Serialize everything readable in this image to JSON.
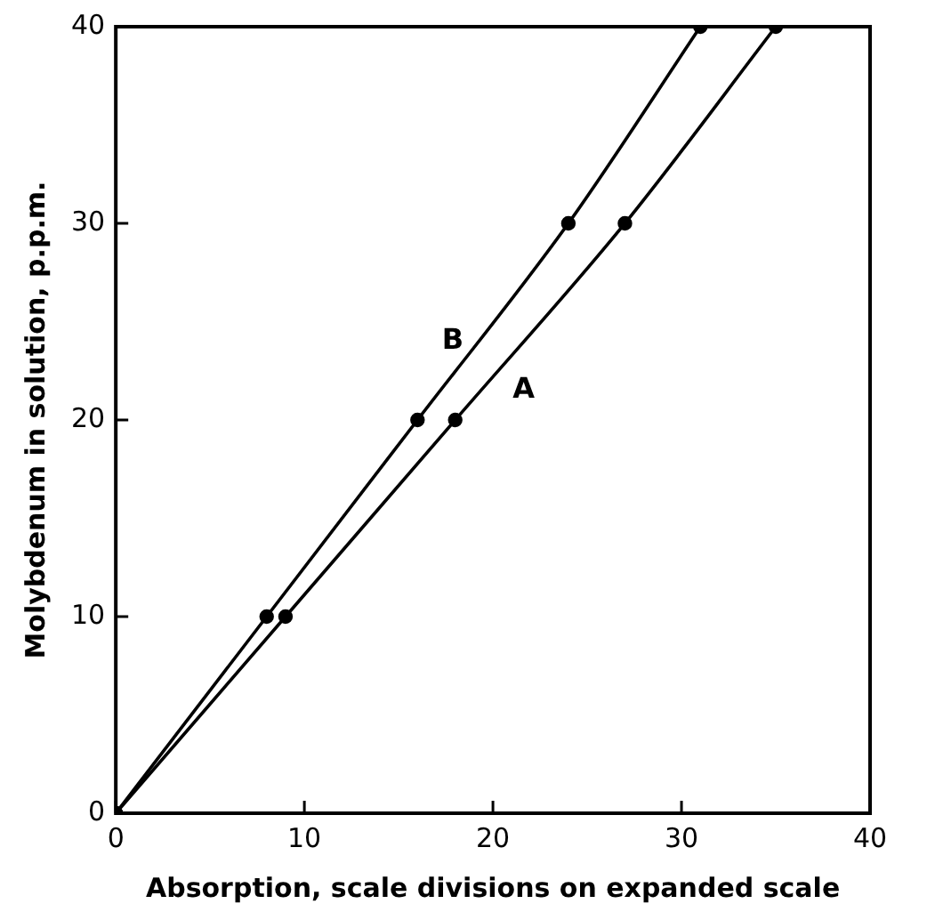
{
  "chart_data": {
    "type": "line",
    "xlabel": "Absorption, scale divisions on expanded scale",
    "ylabel": "Molybdenum in solution, p.p.m.",
    "series": [
      {
        "name": "A",
        "color": "#000000",
        "x": [
          0,
          9,
          18,
          27,
          35
        ],
        "values": [
          0,
          10,
          20,
          30,
          40
        ]
      },
      {
        "name": "B",
        "color": "#000000",
        "x": [
          0,
          8,
          16,
          24,
          31
        ],
        "values": [
          0,
          10,
          20,
          30,
          40
        ]
      }
    ],
    "xlim": [
      0,
      40
    ],
    "xticks": [
      0,
      10,
      20,
      30,
      40
    ],
    "ylim": [
      0,
      40
    ],
    "yticks": [
      0,
      10,
      20,
      30,
      40
    ],
    "grid": false,
    "legend": false,
    "marker": "circle",
    "line_style": "solid"
  }
}
